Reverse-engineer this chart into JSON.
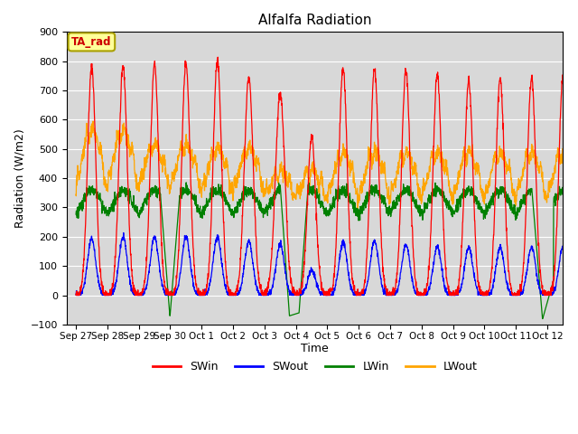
{
  "title": "Alfalfa Radiation",
  "xlabel": "Time",
  "ylabel": "Radiation (W/m2)",
  "ylim": [
    -100,
    900
  ],
  "annotation": "TA_rad",
  "annotation_color": "#cc0000",
  "annotation_bg": "#ffff99",
  "annotation_border": "#aaa000",
  "series": [
    "SWin",
    "SWout",
    "LWin",
    "LWout"
  ],
  "colors": [
    "red",
    "blue",
    "green",
    "orange"
  ],
  "bg_color": "#d8d8d8",
  "grid_color": "white",
  "tick_labels": [
    "Sep 27",
    "Sep 28",
    "Sep 29",
    "Sep 30",
    "Oct 1",
    "Oct 2",
    "Oct 3",
    "Oct 4",
    "Oct 5",
    "Oct 6",
    "Oct 7",
    "Oct 8",
    "Oct 9",
    "Oct 10",
    "Oct 11",
    "Oct 12"
  ],
  "tick_positions": [
    0,
    1,
    2,
    3,
    4,
    5,
    6,
    7,
    8,
    9,
    10,
    11,
    12,
    13,
    14,
    15
  ],
  "num_days": 16,
  "pts_per_day": 144
}
